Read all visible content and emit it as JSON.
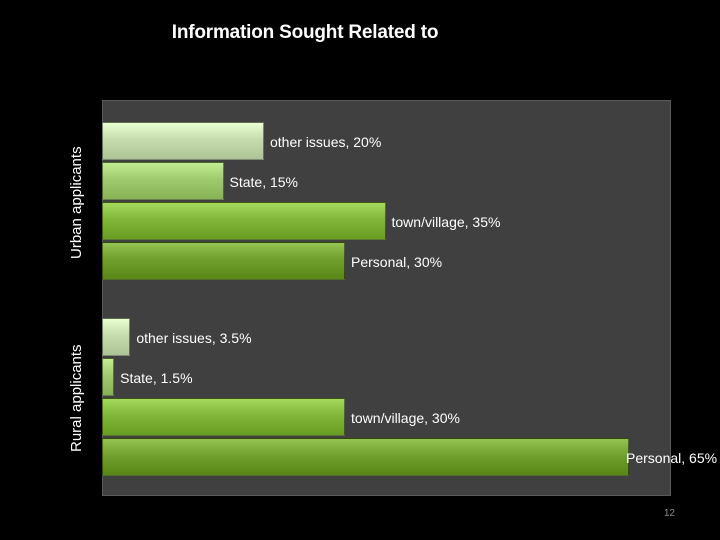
{
  "slide": {
    "title": "Information Sought Related to",
    "page_number": "12"
  },
  "chart_data": {
    "type": "bar",
    "orientation": "horizontal",
    "title": "Information Sought Related to",
    "xlim": [
      0,
      70
    ],
    "grid": false,
    "legend": "none",
    "groups": [
      {
        "name": "Urban applicants",
        "bars": [
          {
            "category": "other issues",
            "value": 20,
            "label": "other issues, 20%",
            "color": "#c6dcae"
          },
          {
            "category": "State",
            "value": 15,
            "label": "State, 15%",
            "color": "#9fca6e"
          },
          {
            "category": "town/village",
            "value": 35,
            "label": "town/village, 35%",
            "color": "#82b63a"
          },
          {
            "category": "Personal",
            "value": 30,
            "label": "Personal, 30%",
            "color": "#72a02f"
          }
        ]
      },
      {
        "name": "Rural applicants",
        "bars": [
          {
            "category": "other issues",
            "value": 3.5,
            "label": "other issues, 3.5%",
            "color": "#c6dcae"
          },
          {
            "category": "State",
            "value": 1.5,
            "label": "State, 1.5%",
            "color": "#9fca6e"
          },
          {
            "category": "town/village",
            "value": 30,
            "label": "town/village, 30%",
            "color": "#82b63a"
          },
          {
            "category": "Personal",
            "value": 65,
            "label": "Personal, 65%",
            "color": "#72a02f"
          }
        ]
      }
    ]
  }
}
